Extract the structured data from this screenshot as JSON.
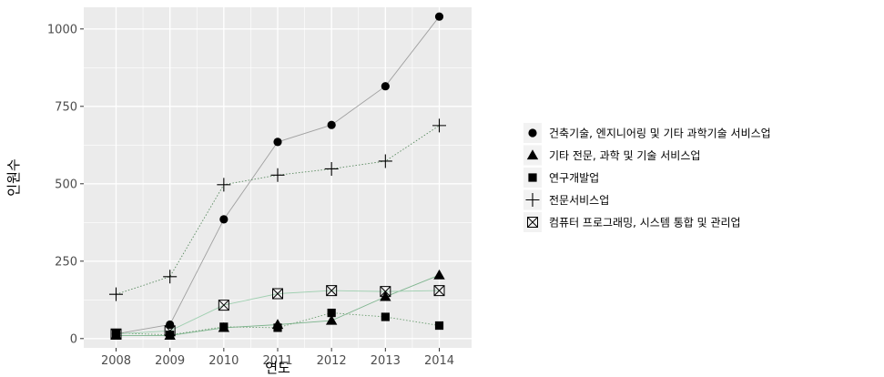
{
  "chart_data": {
    "type": "line",
    "xlabel": "연도",
    "ylabel": "인원수",
    "categories": [
      2008,
      2009,
      2010,
      2011,
      2012,
      2013,
      2014
    ],
    "y_ticks": [
      0,
      250,
      500,
      750,
      1000
    ],
    "ylim": [
      -30,
      1070
    ],
    "grid": true,
    "legend_position": "right",
    "series": [
      {
        "name": "건축기술, 엔지니어링 및 기타 과학기술 서비스업",
        "marker": "circle",
        "line_style": "solid",
        "values": [
          15,
          45,
          385,
          635,
          690,
          815,
          1040
        ]
      },
      {
        "name": "기타 전문, 과학 및 기술 서비스업",
        "marker": "triangle",
        "line_style": "solid",
        "values": [
          10,
          10,
          35,
          45,
          58,
          135,
          205
        ]
      },
      {
        "name": "연구개발업",
        "marker": "square",
        "line_style": "dotted",
        "values": [
          18,
          12,
          38,
          35,
          83,
          70,
          42
        ]
      },
      {
        "name": "전문서비스업",
        "marker": "plus",
        "line_style": "dotted",
        "values": [
          143,
          200,
          497,
          528,
          548,
          573,
          688
        ]
      },
      {
        "name": "컴퓨터 프로그래밍, 시스템 통합 및 관리업",
        "marker": "boxcross",
        "line_style": "solid",
        "values": [
          15,
          25,
          108,
          145,
          155,
          152,
          155
        ]
      }
    ]
  }
}
